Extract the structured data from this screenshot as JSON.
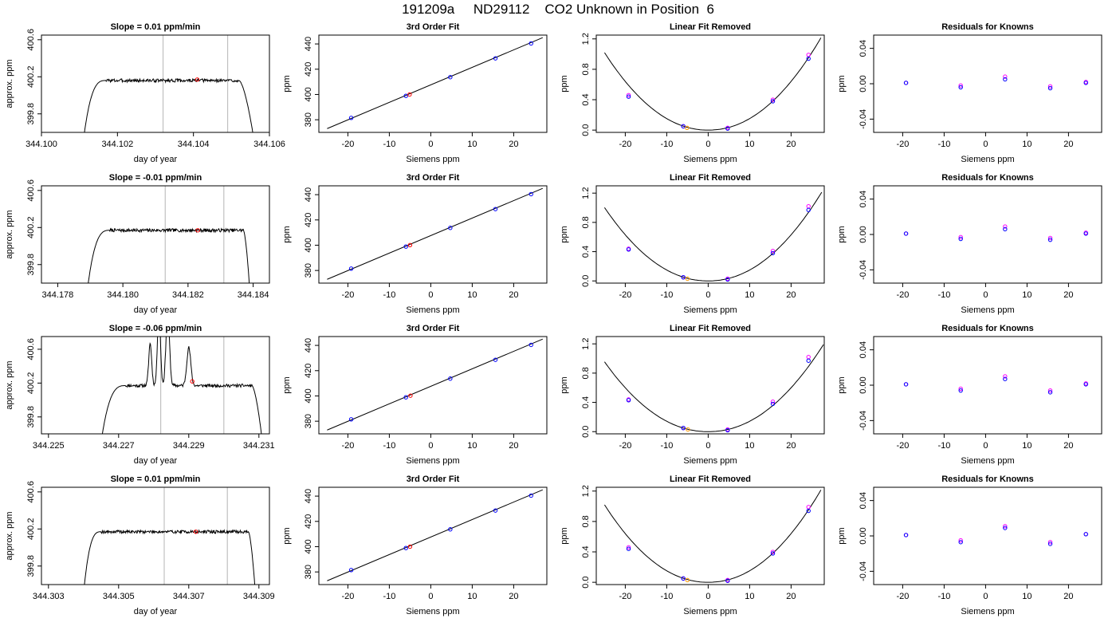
{
  "title": "191209a     ND29112    CO2 Unknown in Position  6",
  "colors": {
    "axis": "#000000",
    "trace": "#000000",
    "vline": "#c0c0c0",
    "red": "#ff0000",
    "blue": "#0000ff",
    "magenta": "#ff00ff",
    "orange": "#ff9900"
  },
  "chart_data": [
    {
      "type": "line",
      "row": 0,
      "col": 0,
      "title": "Slope =  0.01  ppm/min",
      "xlabel": "day of year",
      "ylabel": "approx. ppm",
      "xlim": [
        344.1,
        344.106
      ],
      "ylim": [
        399.6,
        400.65
      ],
      "xticks": [
        344.1,
        344.102,
        344.104,
        344.106
      ],
      "xtick_labels": [
        "344.100",
        "344.102",
        "344.104",
        "344.106"
      ],
      "yticks": [
        399.8,
        400.2,
        400.6
      ],
      "ytick_labels": [
        "399.8",
        "400.2",
        "400.6"
      ],
      "vlines": [
        344.1032,
        344.1049
      ],
      "trace": {
        "start": 344.1011,
        "rise_end": 344.1017,
        "plateau_end": 344.1052,
        "end": 344.1056,
        "level": 400.16,
        "base": 399.5,
        "noise": 0.018,
        "seed": 3
      },
      "marker": {
        "x": 344.1041,
        "y": 400.17
      }
    },
    {
      "type": "scatter",
      "row": 0,
      "col": 1,
      "title": "3rd Order Fit",
      "xlabel": "Siemens ppm",
      "ylabel": "ppm",
      "xlim": [
        -27,
        28
      ],
      "ylim": [
        370,
        447
      ],
      "xticks": [
        -20,
        -10,
        0,
        10,
        20
      ],
      "xtick_labels": [
        "-20",
        "-10",
        "0",
        "10",
        "20"
      ],
      "yticks": [
        380,
        400,
        420,
        440
      ],
      "ytick_labels": [
        "380",
        "400",
        "420",
        "440"
      ],
      "fit_line": {
        "x": [
          -25,
          27
        ],
        "y": [
          373,
          445
        ]
      },
      "knowns": {
        "x": [
          -19.2,
          -6.0,
          4.7,
          15.6,
          24.2
        ],
        "y": [
          381.5,
          398.9,
          413.7,
          428.6,
          440.4
        ]
      },
      "unknown": {
        "x": -5.1,
        "y": 400.0
      }
    },
    {
      "type": "scatter",
      "row": 0,
      "col": 2,
      "title": "Linear Fit Removed",
      "xlabel": "Siemens ppm",
      "ylabel": "ppm",
      "xlim": [
        -27,
        28
      ],
      "ylim": [
        -0.03,
        1.25
      ],
      "xticks": [
        -20,
        -10,
        0,
        10,
        20
      ],
      "xtick_labels": [
        "-20",
        "-10",
        "0",
        "10",
        "20"
      ],
      "yticks": [
        0.0,
        0.4,
        0.8,
        1.2
      ],
      "ytick_labels": [
        "0.0",
        "0.4",
        "0.8",
        "1.2"
      ],
      "curve": {
        "coef": 0.00126,
        "power": 2.08,
        "xmin": -25,
        "xmax": 27.2
      },
      "knowns": {
        "x": [
          -19.2,
          -6.0,
          4.7,
          15.6,
          24.2
        ],
        "y": [
          0.44,
          0.05,
          0.02,
          0.38,
          0.94
        ]
      },
      "knowns2": {
        "x": [
          -19.2,
          -6.0,
          4.7,
          15.6,
          24.2
        ],
        "y": [
          0.46,
          0.05,
          0.03,
          0.4,
          0.99
        ]
      },
      "unknown": {
        "x": -5.1,
        "y": 0.03
      }
    },
    {
      "type": "scatter",
      "row": 0,
      "col": 3,
      "title": "Residuals for Knowns",
      "xlabel": "Siemens ppm",
      "ylabel": "ppm",
      "xlim": [
        -27,
        28
      ],
      "ylim": [
        -0.055,
        0.055
      ],
      "xticks": [
        -20,
        -10,
        0,
        10,
        20
      ],
      "xtick_labels": [
        "-20",
        "-10",
        "0",
        "10",
        "20"
      ],
      "yticks": [
        -0.04,
        0.0,
        0.04
      ],
      "ytick_labels": [
        "-0.04",
        "0.00",
        "0.04"
      ],
      "knowns": {
        "x": [
          -19.2,
          -6.0,
          4.7,
          15.6,
          24.2
        ],
        "y": [
          0.001,
          -0.004,
          0.005,
          -0.005,
          0.001
        ]
      },
      "knowns2": {
        "x": [
          -19.2,
          -6.0,
          4.7,
          15.6,
          24.2
        ],
        "y": [
          0.001,
          -0.002,
          0.008,
          -0.003,
          0.002
        ]
      }
    },
    {
      "type": "line",
      "row": 1,
      "col": 0,
      "title": "Slope =  -0.01  ppm/min",
      "xlabel": "day of year",
      "ylabel": "approx. ppm",
      "xlim": [
        344.1775,
        344.1845
      ],
      "ylim": [
        399.6,
        400.65
      ],
      "xticks": [
        344.178,
        344.18,
        344.182,
        344.184
      ],
      "xtick_labels": [
        "344.178",
        "344.180",
        "344.182",
        "344.184"
      ],
      "yticks": [
        399.8,
        400.2,
        400.6
      ],
      "ytick_labels": [
        "399.8",
        "400.2",
        "400.6"
      ],
      "vlines": [
        344.1813,
        344.1831
      ],
      "trace": {
        "start": 344.1789,
        "rise_end": 344.1796,
        "plateau_end": 344.1837,
        "end": 344.1839,
        "level": 400.17,
        "base": 399.5,
        "noise": 0.018,
        "seed": 7
      },
      "marker": {
        "x": 344.1823,
        "y": 400.17
      }
    },
    {
      "type": "scatter",
      "row": 1,
      "col": 1,
      "title": "3rd Order Fit",
      "xlabel": "Siemens ppm",
      "ylabel": "ppm",
      "xlim": [
        -27,
        28
      ],
      "ylim": [
        370,
        447
      ],
      "xticks": [
        -20,
        -10,
        0,
        10,
        20
      ],
      "xtick_labels": [
        "-20",
        "-10",
        "0",
        "10",
        "20"
      ],
      "yticks": [
        380,
        400,
        420,
        440
      ],
      "ytick_labels": [
        "380",
        "400",
        "420",
        "440"
      ],
      "fit_line": {
        "x": [
          -25,
          27
        ],
        "y": [
          373,
          445
        ]
      },
      "knowns": {
        "x": [
          -19.2,
          -6.0,
          4.7,
          15.6,
          24.2
        ],
        "y": [
          381.5,
          398.9,
          413.7,
          428.6,
          440.4
        ]
      },
      "unknown": {
        "x": -5.0,
        "y": 400.1
      }
    },
    {
      "type": "scatter",
      "row": 1,
      "col": 2,
      "title": "Linear Fit Removed",
      "xlabel": "Siemens ppm",
      "ylabel": "ppm",
      "xlim": [
        -27,
        28
      ],
      "ylim": [
        -0.03,
        1.3
      ],
      "xticks": [
        -20,
        -10,
        0,
        10,
        20
      ],
      "xtick_labels": [
        "-20",
        "-10",
        "0",
        "10",
        "20"
      ],
      "yticks": [
        0.0,
        0.4,
        0.8,
        1.2
      ],
      "ytick_labels": [
        "0.0",
        "0.4",
        "0.8",
        "1.2"
      ],
      "curve": {
        "coef": 0.00124,
        "power": 2.08,
        "xmin": -25,
        "xmax": 27.4
      },
      "knowns": {
        "x": [
          -19.2,
          -6.0,
          4.7,
          15.6,
          24.2
        ],
        "y": [
          0.43,
          0.05,
          0.02,
          0.38,
          0.97
        ]
      },
      "knowns2": {
        "x": [
          -19.2,
          -6.0,
          4.7,
          15.6,
          24.2
        ],
        "y": [
          0.44,
          0.05,
          0.03,
          0.41,
          1.02
        ]
      },
      "unknown": {
        "x": -5.0,
        "y": 0.03
      }
    },
    {
      "type": "scatter",
      "row": 1,
      "col": 3,
      "title": "Residuals for Knowns",
      "xlabel": "Siemens ppm",
      "ylabel": "ppm",
      "xlim": [
        -27,
        28
      ],
      "ylim": [
        -0.055,
        0.055
      ],
      "xticks": [
        -20,
        -10,
        0,
        10,
        20
      ],
      "xtick_labels": [
        "-20",
        "-10",
        "0",
        "10",
        "20"
      ],
      "yticks": [
        -0.04,
        0.0,
        0.04
      ],
      "ytick_labels": [
        "-0.04",
        "0.00",
        "0.04"
      ],
      "knowns": {
        "x": [
          -19.2,
          -6.0,
          4.7,
          15.6,
          24.2
        ],
        "y": [
          0.001,
          -0.005,
          0.006,
          -0.006,
          0.001
        ]
      },
      "knowns2": {
        "x": [
          -19.2,
          -6.0,
          4.7,
          15.6,
          24.2
        ],
        "y": [
          0.001,
          -0.003,
          0.009,
          -0.004,
          0.002
        ]
      }
    },
    {
      "type": "line",
      "row": 2,
      "col": 0,
      "title": "Slope =  -0.06  ppm/min",
      "xlabel": "day of year",
      "ylabel": "approx. ppm",
      "xlim": [
        344.2248,
        344.2313
      ],
      "ylim": [
        399.6,
        400.75
      ],
      "xticks": [
        344.225,
        344.227,
        344.229,
        344.231
      ],
      "xtick_labels": [
        "344.225",
        "344.227",
        "344.229",
        "344.231"
      ],
      "yticks": [
        399.8,
        400.2,
        400.6
      ],
      "ytick_labels": [
        "399.8",
        "400.2",
        "400.6"
      ],
      "vlines": [
        344.2282,
        344.23
      ],
      "trace": {
        "start": 344.2265,
        "rise_end": 344.2272,
        "plateau_end": 344.2308,
        "end": 344.2311,
        "level": 400.17,
        "base": 399.5,
        "noise": 0.018,
        "seed": 11
      },
      "peaks": [
        {
          "x": 344.2279,
          "h": 0.5,
          "w": 6e-05
        },
        {
          "x": 344.22815,
          "h": 0.9,
          "w": 6e-05
        },
        {
          "x": 344.2284,
          "h": 0.9,
          "w": 7e-05
        },
        {
          "x": 344.229,
          "h": 0.45,
          "w": 8e-05
        }
      ],
      "marker": {
        "x": 344.2291,
        "y": 400.22
      }
    },
    {
      "type": "scatter",
      "row": 2,
      "col": 1,
      "title": "3rd Order Fit",
      "xlabel": "Siemens ppm",
      "ylabel": "ppm",
      "xlim": [
        -27,
        28
      ],
      "ylim": [
        370,
        447
      ],
      "xticks": [
        -20,
        -10,
        0,
        10,
        20
      ],
      "xtick_labels": [
        "-20",
        "-10",
        "0",
        "10",
        "20"
      ],
      "yticks": [
        380,
        400,
        420,
        440
      ],
      "ytick_labels": [
        "380",
        "400",
        "420",
        "440"
      ],
      "fit_line": {
        "x": [
          -25,
          27
        ],
        "y": [
          373,
          445
        ]
      },
      "knowns": {
        "x": [
          -19.2,
          -6.0,
          4.7,
          15.6,
          24.2
        ],
        "y": [
          381.5,
          398.9,
          413.7,
          428.6,
          440.4
        ]
      },
      "unknown": {
        "x": -4.9,
        "y": 400.2
      }
    },
    {
      "type": "scatter",
      "row": 2,
      "col": 2,
      "title": "Linear Fit Removed",
      "xlabel": "Siemens ppm",
      "ylabel": "ppm",
      "xlim": [
        -27,
        28
      ],
      "ylim": [
        -0.03,
        1.3
      ],
      "xticks": [
        -20,
        -10,
        0,
        10,
        20
      ],
      "xtick_labels": [
        "-20",
        "-10",
        "0",
        "10",
        "20"
      ],
      "yticks": [
        0.0,
        0.4,
        0.8,
        1.2
      ],
      "ytick_labels": [
        "0.0",
        "0.4",
        "0.8",
        "1.2"
      ],
      "curve": {
        "coef": 0.00118,
        "power": 2.08,
        "xmin": -25,
        "xmax": 27.8
      },
      "knowns": {
        "x": [
          -19.2,
          -6.0,
          4.7,
          15.6,
          24.2
        ],
        "y": [
          0.43,
          0.05,
          0.02,
          0.38,
          0.97
        ]
      },
      "knowns2": {
        "x": [
          -19.2,
          -6.0,
          4.7,
          15.6,
          24.2
        ],
        "y": [
          0.44,
          0.05,
          0.03,
          0.41,
          1.02
        ]
      },
      "unknown": {
        "x": -4.9,
        "y": 0.03
      }
    },
    {
      "type": "scatter",
      "row": 2,
      "col": 3,
      "title": "Residuals for Knowns",
      "xlabel": "Siemens ppm",
      "ylabel": "ppm",
      "xlim": [
        -27,
        28
      ],
      "ylim": [
        -0.055,
        0.055
      ],
      "xticks": [
        -20,
        -10,
        0,
        10,
        20
      ],
      "xtick_labels": [
        "-20",
        "-10",
        "0",
        "10",
        "20"
      ],
      "yticks": [
        -0.04,
        0.0,
        0.04
      ],
      "ytick_labels": [
        "-0.04",
        "0.00",
        "0.04"
      ],
      "knowns": {
        "x": [
          -19.2,
          -6.0,
          4.7,
          15.6,
          24.2
        ],
        "y": [
          0.001,
          -0.006,
          0.007,
          -0.008,
          0.001
        ]
      },
      "knowns2": {
        "x": [
          -19.2,
          -6.0,
          4.7,
          15.6,
          24.2
        ],
        "y": [
          0.001,
          -0.004,
          0.01,
          -0.006,
          0.002
        ]
      }
    },
    {
      "type": "line",
      "row": 3,
      "col": 0,
      "title": "Slope =  0.01  ppm/min",
      "xlabel": "day of year",
      "ylabel": "approx. ppm",
      "xlim": [
        344.3028,
        344.3093
      ],
      "ylim": [
        399.6,
        400.65
      ],
      "xticks": [
        344.303,
        344.305,
        344.307,
        344.309
      ],
      "xtick_labels": [
        "344.303",
        "344.305",
        "344.307",
        "344.309"
      ],
      "yticks": [
        399.8,
        400.2,
        400.6
      ],
      "ytick_labels": [
        "399.8",
        "400.2",
        "400.6"
      ],
      "vlines": [
        344.3063,
        344.3081
      ],
      "trace": {
        "start": 344.304,
        "rise_end": 344.3045,
        "plateau_end": 344.3087,
        "end": 344.3089,
        "level": 400.17,
        "base": 399.5,
        "noise": 0.017,
        "seed": 19
      },
      "marker": {
        "x": 344.3072,
        "y": 400.17
      }
    },
    {
      "type": "scatter",
      "row": 3,
      "col": 1,
      "title": "3rd Order Fit",
      "xlabel": "Siemens ppm",
      "ylabel": "ppm",
      "xlim": [
        -27,
        28
      ],
      "ylim": [
        370,
        447
      ],
      "xticks": [
        -20,
        -10,
        0,
        10,
        20
      ],
      "xtick_labels": [
        "-20",
        "-10",
        "0",
        "10",
        "20"
      ],
      "yticks": [
        380,
        400,
        420,
        440
      ],
      "ytick_labels": [
        "380",
        "400",
        "420",
        "440"
      ],
      "fit_line": {
        "x": [
          -25,
          27
        ],
        "y": [
          373,
          445
        ]
      },
      "knowns": {
        "x": [
          -19.2,
          -6.0,
          4.7,
          15.6,
          24.2
        ],
        "y": [
          381.5,
          398.9,
          413.7,
          428.6,
          440.4
        ]
      },
      "unknown": {
        "x": -5.0,
        "y": 400.0
      }
    },
    {
      "type": "scatter",
      "row": 3,
      "col": 2,
      "title": "Linear Fit Removed",
      "xlabel": "Siemens ppm",
      "ylabel": "ppm",
      "xlim": [
        -27,
        28
      ],
      "ylim": [
        -0.03,
        1.25
      ],
      "xticks": [
        -20,
        -10,
        0,
        10,
        20
      ],
      "xtick_labels": [
        "-20",
        "-10",
        "0",
        "10",
        "20"
      ],
      "yticks": [
        0.0,
        0.4,
        0.8,
        1.2
      ],
      "ytick_labels": [
        "0.0",
        "0.4",
        "0.8",
        "1.2"
      ],
      "curve": {
        "coef": 0.00126,
        "power": 2.08,
        "xmin": -25,
        "xmax": 27.2
      },
      "knowns": {
        "x": [
          -19.2,
          -6.0,
          4.7,
          15.6,
          24.2
        ],
        "y": [
          0.44,
          0.05,
          0.02,
          0.38,
          0.94
        ]
      },
      "knowns2": {
        "x": [
          -19.2,
          -6.0,
          4.7,
          15.6,
          24.2
        ],
        "y": [
          0.46,
          0.05,
          0.03,
          0.4,
          0.99
        ]
      },
      "unknown": {
        "x": -5.0,
        "y": 0.03
      }
    },
    {
      "type": "scatter",
      "row": 3,
      "col": 3,
      "title": "Residuals for Knowns",
      "xlabel": "Siemens ppm",
      "ylabel": "ppm",
      "xlim": [
        -27,
        28
      ],
      "ylim": [
        -0.055,
        0.055
      ],
      "xticks": [
        -20,
        -10,
        0,
        10,
        20
      ],
      "xtick_labels": [
        "-20",
        "-10",
        "0",
        "10",
        "20"
      ],
      "yticks": [
        -0.04,
        0.0,
        0.04
      ],
      "ytick_labels": [
        "-0.04",
        "0.00",
        "0.04"
      ],
      "knowns": {
        "x": [
          -19.2,
          -6.0,
          4.7,
          15.6,
          24.2
        ],
        "y": [
          0.001,
          -0.007,
          0.009,
          -0.009,
          0.002
        ]
      },
      "knowns2": {
        "x": [
          -19.2,
          -6.0,
          4.7,
          15.6,
          24.2
        ],
        "y": [
          0.001,
          -0.005,
          0.011,
          -0.007,
          0.002
        ]
      }
    }
  ]
}
